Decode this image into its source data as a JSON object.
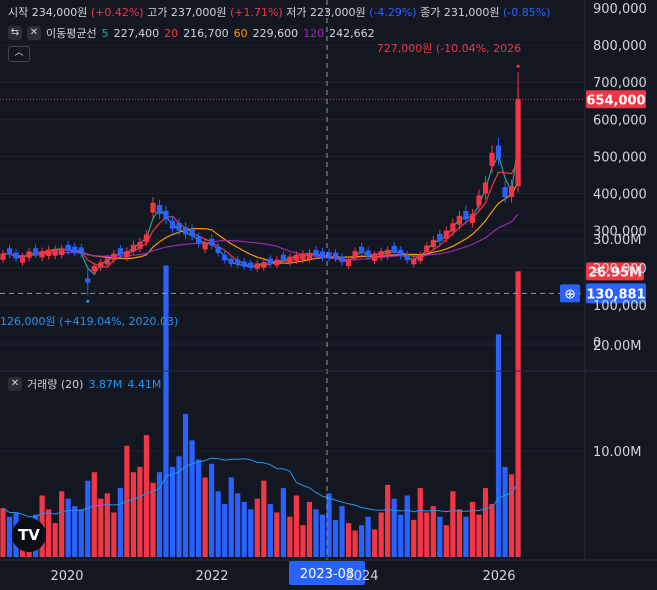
{
  "legend": {
    "open_label": "시작",
    "open_value": "234,000원",
    "open_change": "(+0.42%)",
    "high_label": "고가",
    "high_value": "237,000원",
    "high_change": "(+1.71%)",
    "low_label": "저가",
    "low_value": "223,000원",
    "low_change": "(-4.29%)",
    "close_label": "종가",
    "close_value": "231,000원",
    "close_change": "(-0.85%)",
    "ma_label": "이동평균선",
    "ma5_period": "5",
    "ma5_value": "227,400",
    "ma20_period": "20",
    "ma20_value": "216,700",
    "ma60_period": "60",
    "ma60_value": "229,600",
    "ma120_period": "120",
    "ma120_value": "242,662",
    "volume_label": "거래량 (20)",
    "volume_v1": "3.87M",
    "volume_v2": "4.41M"
  },
  "colors": {
    "up": "#f23645",
    "down": "#2962ff",
    "ma5": "#26a69a",
    "ma20": "#f23645",
    "ma60": "#ff9800",
    "ma120": "#9c27b0",
    "volume_ma": "#2196f3",
    "crosshair": "#9598a1"
  },
  "markers": {
    "high_annotation": "727,000원 (-10.04%, 2026",
    "low_annotation": "126,000원 (+419.04%, 2020.03)",
    "current_price_label": "654,000",
    "crosshair_price_label": "130,881",
    "crosshair_time_label": "2023-08",
    "current_volume_label": "26.95M"
  },
  "chart_data": [
    {
      "type": "candlestick",
      "price_axis_ticks": [
        "900,000",
        "800,000",
        "700,000",
        "600,000",
        "500,000",
        "400,000",
        "300,000",
        "200,000",
        "100,000",
        "0"
      ],
      "time_axis_ticks": [
        "2020",
        "2022",
        "2024",
        "2026"
      ],
      "ylim": [
        0,
        900000
      ],
      "log_scale": false,
      "all_time_high": 727000,
      "all_time_low": 126000,
      "last_price": 654000,
      "closes_approx_monthly": [
        238000,
        236000,
        225000,
        230000,
        244000,
        236000,
        245000,
        249000,
        250000,
        252000,
        245000,
        240000,
        238000,
        160000,
        205000,
        215000,
        225000,
        238000,
        236000,
        245000,
        262000,
        270000,
        290000,
        375000,
        345000,
        330000,
        305000,
        300000,
        290000,
        285000,
        265000,
        268000,
        260000,
        240000,
        220000,
        210000,
        208000,
        203000,
        200000,
        212000,
        215000,
        210000,
        222000,
        220000,
        230000,
        235000,
        238000,
        240000,
        232000,
        228000,
        226000,
        225000,
        215000,
        220000,
        245000,
        240000,
        230000,
        235000,
        245000,
        248000,
        242000,
        232000,
        220000,
        225000,
        235000,
        260000,
        275000,
        272000,
        300000,
        320000,
        340000,
        330000,
        345000,
        395000,
        430000,
        510000,
        495000,
        390000,
        420000,
        654000
      ],
      "candle_up": [
        true,
        false,
        false,
        true,
        true,
        false,
        true,
        true,
        true,
        true,
        false,
        false,
        false,
        false,
        true,
        true,
        true,
        true,
        false,
        true,
        true,
        true,
        true,
        true,
        false,
        false,
        false,
        false,
        false,
        false,
        false,
        true,
        false,
        false,
        false,
        false,
        false,
        false,
        false,
        true,
        true,
        false,
        true,
        false,
        true,
        true,
        true,
        true,
        false,
        false,
        false,
        false,
        false,
        true,
        true,
        false,
        false,
        true,
        true,
        true,
        false,
        false,
        false,
        true,
        true,
        true,
        true,
        false,
        true,
        true,
        true,
        false,
        true,
        true,
        true,
        true,
        false,
        false,
        true,
        true
      ],
      "ma_series": [
        {
          "name": "5",
          "color": "#26a69a"
        },
        {
          "name": "20",
          "color": "#f23645"
        },
        {
          "name": "60",
          "color": "#ff9800"
        },
        {
          "name": "120",
          "color": "#9c27b0"
        }
      ]
    },
    {
      "type": "bar",
      "name": "거래량 (20)",
      "value_axis_ticks": [
        "30.00M",
        "20.00M",
        "10.00M"
      ],
      "ylim": [
        0,
        32000000
      ],
      "volumes_millions": [
        4.6,
        3.8,
        4.2,
        3.5,
        2.8,
        4.0,
        5.8,
        4.5,
        3.2,
        6.2,
        5.5,
        4.8,
        4.5,
        7.2,
        8.0,
        5.5,
        6.0,
        4.2,
        6.5,
        10.5,
        8.0,
        8.5,
        11.5,
        7.0,
        8.0,
        27.5,
        8.5,
        9.5,
        13.5,
        11.0,
        9.2,
        7.5,
        8.8,
        6.2,
        5.0,
        7.5,
        6.0,
        5.2,
        4.5,
        5.5,
        7.2,
        5.0,
        4.2,
        6.5,
        3.8,
        5.8,
        3.0,
        5.2,
        4.5,
        4.0,
        6.0,
        3.5,
        4.8,
        3.2,
        2.5,
        3.0,
        3.8,
        2.6,
        4.2,
        6.8,
        5.5,
        4.0,
        5.8,
        3.5,
        6.5,
        4.2,
        4.8,
        3.8,
        3.0,
        6.2,
        4.5,
        3.8,
        5.2,
        4.0,
        6.5,
        5.0,
        21.0,
        8.5,
        7.8,
        26.95
      ]
    }
  ]
}
